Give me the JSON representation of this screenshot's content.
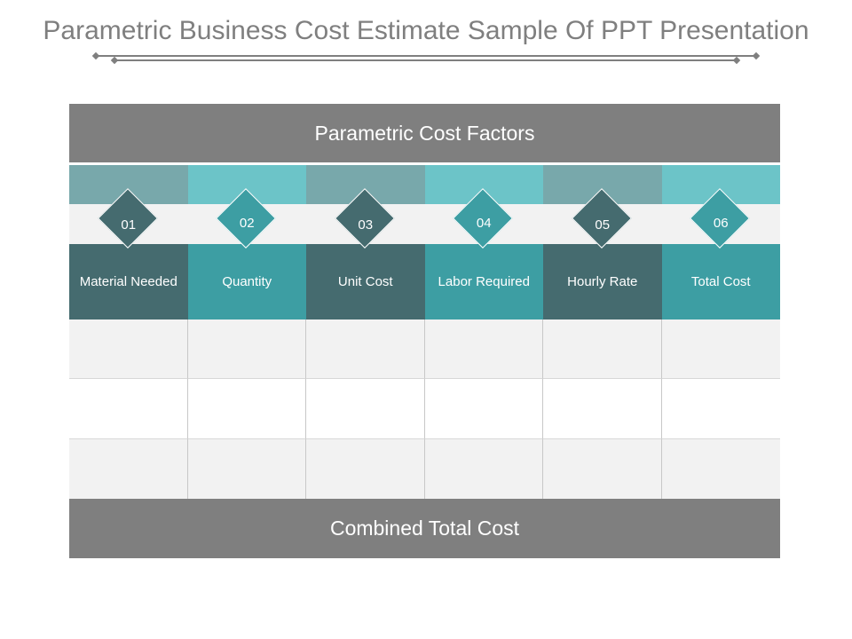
{
  "title": "Parametric Business Cost Estimate Sample Of PPT Presentation",
  "header": "Parametric Cost Factors",
  "footer": "Combined Total Cost",
  "colors": {
    "dark": "#456b6f",
    "teal": "#3d9ea3",
    "band_dark": "#78a8ab",
    "band_light": "#6cc4c8",
    "gray": "#7f7f7f"
  },
  "factors": [
    {
      "num": "01",
      "label": "Material Needed"
    },
    {
      "num": "02",
      "label": "Quantity"
    },
    {
      "num": "03",
      "label": "Unit Cost"
    },
    {
      "num": "04",
      "label": "Labor Required"
    },
    {
      "num": "05",
      "label": "Hourly Rate"
    },
    {
      "num": "06",
      "label": "Total Cost"
    }
  ]
}
